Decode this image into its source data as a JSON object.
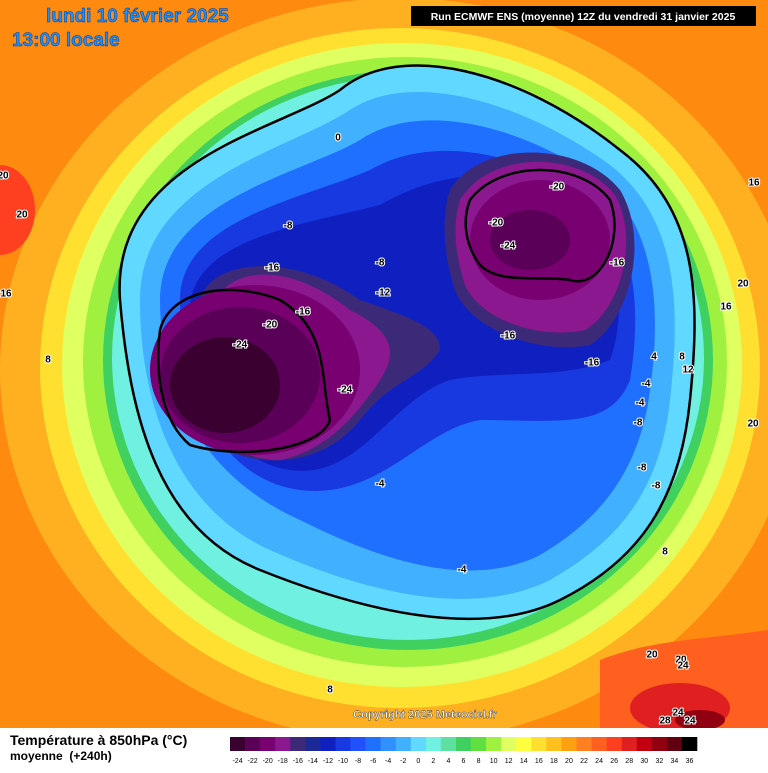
{
  "header": {
    "date": "lundi 10 février 2025",
    "time": "13:00 locale",
    "run": "Run ECMWF ENS (moyenne) 12Z du vendredi 31 janvier 2025"
  },
  "map": {
    "copyright": "Copyright 2025 Meteociel.fr",
    "labels": [
      "0",
      "-8",
      "-16",
      "-8",
      "-12",
      "-16",
      "-20",
      "-24",
      "-24",
      "-20",
      "-20",
      "-24",
      "-16",
      "-16",
      "-16",
      "-4",
      "4",
      "8",
      "12",
      "-4",
      "-8",
      "-8",
      "-8",
      "-4",
      "-4",
      "8",
      "8",
      "20",
      "20",
      "24",
      "24",
      "28",
      "24",
      "20",
      "20",
      "16",
      "8",
      "16",
      "20",
      "16",
      "20"
    ]
  },
  "legend": {
    "title": "Température à 850hPa (°C)",
    "subtitle": "moyenne  (+240h)",
    "ticks": [
      -24,
      -22,
      -20,
      -18,
      -16,
      -14,
      -12,
      -10,
      -8,
      -6,
      -4,
      -2,
      0,
      2,
      4,
      6,
      8,
      10,
      12,
      14,
      16,
      18,
      20,
      22,
      24,
      26,
      28,
      30,
      32,
      34,
      36
    ],
    "colors": [
      "#3a0030",
      "#5a0058",
      "#780070",
      "#8c1890",
      "#3c2a78",
      "#1c2a98",
      "#1020c0",
      "#1838e0",
      "#2050ff",
      "#2070ff",
      "#3090ff",
      "#40b0ff",
      "#60d8ff",
      "#70f0e0",
      "#60e0a0",
      "#40d060",
      "#60e040",
      "#a0f040",
      "#e0ff60",
      "#ffff40",
      "#ffe030",
      "#ffc020",
      "#ffa010",
      "#ff8020",
      "#ff6020",
      "#ff4020",
      "#e02020",
      "#c00010",
      "#900010",
      "#600010",
      "#000000"
    ]
  }
}
